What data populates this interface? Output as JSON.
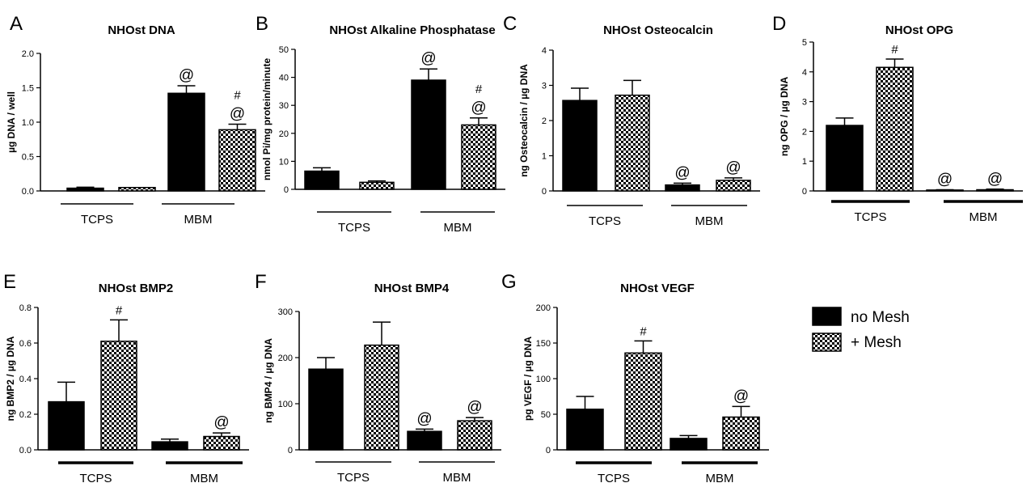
{
  "chart_data": [
    {
      "panel": "A",
      "type": "bar",
      "title": "NHOst DNA",
      "ylabel": "µg DNA / well",
      "ylim": [
        0,
        2.0
      ],
      "yticks": [
        "0.0",
        "0.5",
        "1.0",
        "1.5",
        "2.0"
      ],
      "groups": [
        "TCPS",
        "MBM"
      ],
      "bars": [
        {
          "series": "no Mesh",
          "group": "TCPS",
          "value": 0.04,
          "error": 0.015,
          "marks": []
        },
        {
          "series": "+ Mesh",
          "group": "TCPS",
          "value": 0.05,
          "error": 0.0,
          "marks": []
        },
        {
          "series": "no Mesh",
          "group": "MBM",
          "value": 1.42,
          "error": 0.11,
          "marks": [
            "@"
          ]
        },
        {
          "series": "+ Mesh",
          "group": "MBM",
          "value": 0.89,
          "error": 0.08,
          "marks": [
            "#",
            "@"
          ]
        }
      ]
    },
    {
      "panel": "B",
      "type": "bar",
      "title": "NHOst Alkaline Phosphatase",
      "ylabel": "nmol Pi/mg protein/minute",
      "ylim": [
        0,
        50
      ],
      "yticks": [
        "0",
        "10",
        "20",
        "30",
        "40",
        "50"
      ],
      "groups": [
        "TCPS",
        "MBM"
      ],
      "bars": [
        {
          "series": "no Mesh",
          "group": "TCPS",
          "value": 6.5,
          "error": 1.2,
          "marks": []
        },
        {
          "series": "+ Mesh",
          "group": "TCPS",
          "value": 2.5,
          "error": 0.5,
          "marks": []
        },
        {
          "series": "no Mesh",
          "group": "MBM",
          "value": 39.0,
          "error": 4.0,
          "marks": [
            "@"
          ]
        },
        {
          "series": "+ Mesh",
          "group": "MBM",
          "value": 23.0,
          "error": 2.5,
          "marks": [
            "#",
            "@"
          ]
        }
      ]
    },
    {
      "panel": "C",
      "type": "bar",
      "title": "NHOst Osteocalcin",
      "ylabel": "ng Osteocalcin / µg DNA",
      "ylim": [
        0,
        4
      ],
      "yticks": [
        "0",
        "1",
        "2",
        "3",
        "4"
      ],
      "groups": [
        "TCPS",
        "MBM"
      ],
      "bars": [
        {
          "series": "no Mesh",
          "group": "TCPS",
          "value": 2.57,
          "error": 0.35,
          "marks": []
        },
        {
          "series": "+ Mesh",
          "group": "TCPS",
          "value": 2.72,
          "error": 0.42,
          "marks": []
        },
        {
          "series": "no Mesh",
          "group": "MBM",
          "value": 0.17,
          "error": 0.05,
          "marks": [
            "@"
          ]
        },
        {
          "series": "+ Mesh",
          "group": "MBM",
          "value": 0.3,
          "error": 0.07,
          "marks": [
            "@"
          ]
        }
      ]
    },
    {
      "panel": "D",
      "type": "bar",
      "title": "NHOst OPG",
      "ylabel": "ng OPG / µg DNA",
      "ylim": [
        0,
        5
      ],
      "yticks": [
        "0",
        "1",
        "2",
        "3",
        "4",
        "5"
      ],
      "groups": [
        "TCPS",
        "MBM"
      ],
      "bars": [
        {
          "series": "no Mesh",
          "group": "TCPS",
          "value": 2.2,
          "error": 0.25,
          "marks": []
        },
        {
          "series": "+ Mesh",
          "group": "TCPS",
          "value": 4.15,
          "error": 0.28,
          "marks": [
            "#"
          ]
        },
        {
          "series": "no Mesh",
          "group": "MBM",
          "value": 0.03,
          "error": 0.01,
          "marks": [
            "@"
          ]
        },
        {
          "series": "+ Mesh",
          "group": "MBM",
          "value": 0.04,
          "error": 0.02,
          "marks": [
            "@"
          ]
        }
      ]
    },
    {
      "panel": "E",
      "type": "bar",
      "title": "NHOst BMP2",
      "ylabel": "ng BMP2 / µg DNA",
      "ylim": [
        0,
        0.8
      ],
      "yticks": [
        "0.0",
        "0.2",
        "0.4",
        "0.6",
        "0.8"
      ],
      "groups": [
        "TCPS",
        "MBM"
      ],
      "bars": [
        {
          "series": "no Mesh",
          "group": "TCPS",
          "value": 0.27,
          "error": 0.11,
          "marks": []
        },
        {
          "series": "+ Mesh",
          "group": "TCPS",
          "value": 0.61,
          "error": 0.12,
          "marks": [
            "#"
          ]
        },
        {
          "series": "no Mesh",
          "group": "MBM",
          "value": 0.045,
          "error": 0.015,
          "marks": []
        },
        {
          "series": "+ Mesh",
          "group": "MBM",
          "value": 0.075,
          "error": 0.02,
          "marks": [
            "@"
          ]
        }
      ]
    },
    {
      "panel": "F",
      "type": "bar",
      "title": "NHOst BMP4",
      "ylabel": "ng BMP4 / µg DNA",
      "ylim": [
        0,
        300
      ],
      "yticks": [
        "0",
        "100",
        "200",
        "300"
      ],
      "groups": [
        "TCPS",
        "MBM"
      ],
      "bars": [
        {
          "series": "no Mesh",
          "group": "TCPS",
          "value": 175,
          "error": 25,
          "marks": []
        },
        {
          "series": "+ Mesh",
          "group": "TCPS",
          "value": 227,
          "error": 50,
          "marks": []
        },
        {
          "series": "no Mesh",
          "group": "MBM",
          "value": 40,
          "error": 5,
          "marks": [
            "@"
          ]
        },
        {
          "series": "+ Mesh",
          "group": "MBM",
          "value": 63,
          "error": 7,
          "marks": [
            "@"
          ]
        }
      ]
    },
    {
      "panel": "G",
      "type": "bar",
      "title": "NHOst VEGF",
      "ylabel": "pg VEGF / µg DNA",
      "ylim": [
        0,
        200
      ],
      "yticks": [
        "0",
        "50",
        "100",
        "150",
        "200"
      ],
      "groups": [
        "TCPS",
        "MBM"
      ],
      "bars": [
        {
          "series": "no Mesh",
          "group": "TCPS",
          "value": 57,
          "error": 18,
          "marks": []
        },
        {
          "series": "+ Mesh",
          "group": "TCPS",
          "value": 136,
          "error": 17,
          "marks": [
            "#"
          ]
        },
        {
          "series": "no Mesh",
          "group": "MBM",
          "value": 16,
          "error": 4,
          "marks": []
        },
        {
          "series": "+ Mesh",
          "group": "MBM",
          "value": 46,
          "error": 15,
          "marks": [
            "@"
          ]
        }
      ]
    }
  ],
  "legend": {
    "placement": "right",
    "entries": [
      {
        "label": "no Mesh",
        "fill": "solid"
      },
      {
        "label": "+ Mesh",
        "fill": "checkered"
      }
    ]
  },
  "colors": {
    "bar_solid": "#000000",
    "checker_dark": "#000000",
    "checker_light": "#ffffff"
  }
}
